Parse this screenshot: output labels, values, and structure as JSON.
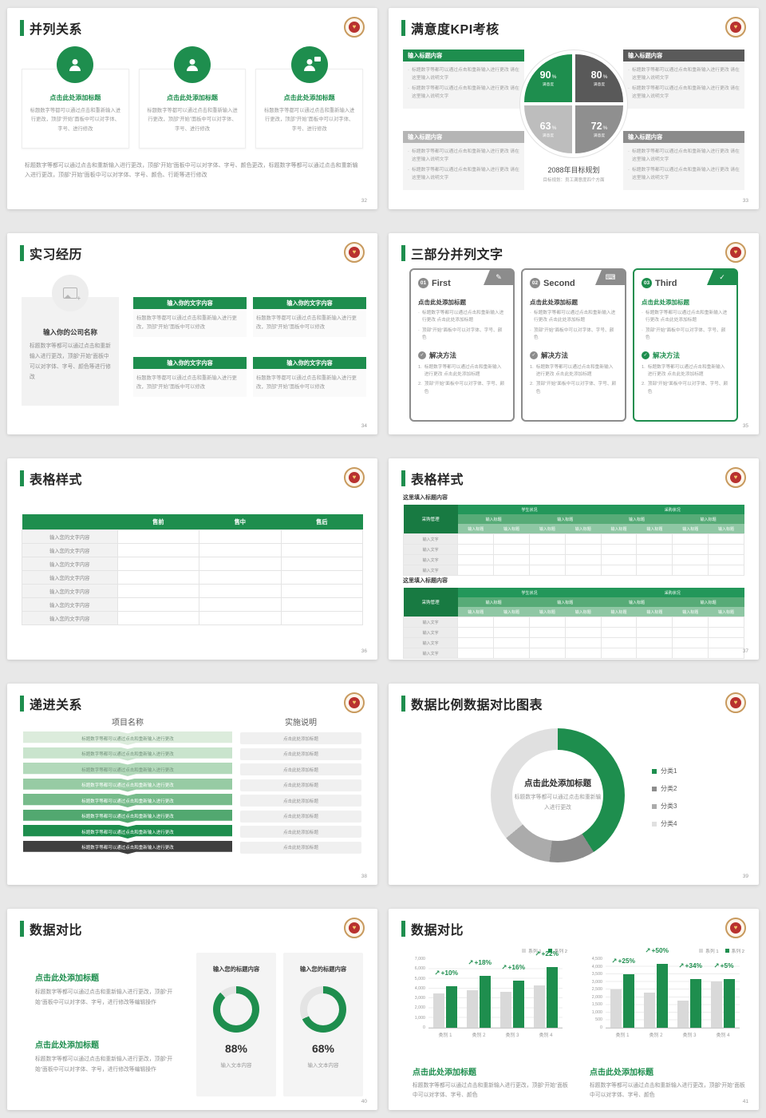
{
  "theme": {
    "green": "#1e8e4e",
    "dark_green": "#187a42",
    "gray_dark": "#595959",
    "gray_mid": "#8f8f8f",
    "gray_light": "#bdbdbd"
  },
  "slides": {
    "s32": {
      "title": "并列关系",
      "page": "32",
      "card_title": "点击此处添加标题",
      "card_body": "标题数字等都可以通过点击和重新输入进行更改，顶部“开始”面板中可以对字体、字号、进行修改",
      "footer": "标题数字等都可以通过点击和重新输入进行更改，顶部“开始”面板中可以对字体、字号、颜色更改，标题数字等都可以通过点击和重新输入进行更改，顶部“开始”面板中可以对字体、字号、颜色、行距等进行修改"
    },
    "s33": {
      "title": "满意度KPI考核",
      "page": "33",
      "box_title": "输入标题内容",
      "bullet": "标题数字等都可以通过点击和重新输入进行更改 请在这里输入说明文字",
      "center_title": "2088年目标规划",
      "center_caption": "目标规划：员工满意度四个方面",
      "quadrants": [
        {
          "value": "90",
          "label": "满意度"
        },
        {
          "value": "80",
          "label": "满意度"
        },
        {
          "value": "63",
          "label": "满意度"
        },
        {
          "value": "72",
          "label": "满意度"
        }
      ]
    },
    "s34": {
      "title": "实习经历",
      "page": "34",
      "company_title": "输入你的公司名称",
      "company_body": "标题数字等都可以通过点击和重新输入进行更改，顶部“开始”面板中可以对字体、字号、颜色等进行修改",
      "box_title": "输入你的文字内容",
      "box_body": "标题数字等都可以通过点击和重新输入进行更改，顶部“开始”面板中可以修改"
    },
    "s35": {
      "title": "三部分并列文字",
      "page": "35",
      "cards": [
        {
          "num": "01",
          "name": "First"
        },
        {
          "num": "02",
          "name": "Second"
        },
        {
          "num": "03",
          "name": "Third"
        }
      ],
      "card_title": "点击此处添加标题",
      "bullets": [
        "标题数字等都可以通过点击和重新输入进行更改 点击此处添加标题",
        "顶部“开始”面板中可以对字体、字号、颜色"
      ],
      "solution_label": "解决方法",
      "solution_items": [
        "标题数字等都可以通过点击和重新输入进行更改 点击此处添加标题",
        "顶部“开始”面板中可以对字体、字号、颜色"
      ]
    },
    "s36": {
      "title": "表格样式",
      "page": "36",
      "headers": [
        "",
        "售前",
        "售中",
        "售后"
      ],
      "row_label": "输入您的文字内容",
      "row_count": 7
    },
    "s37": {
      "title": "表格样式",
      "page": "37",
      "caption": "这里填入标题内容",
      "stub": "采购管理",
      "groups": [
        "学生状况",
        "采购状况"
      ],
      "sub": "输入标题",
      "cell": "输入文字",
      "body_rows": 4
    },
    "s38": {
      "title": "递进关系",
      "page": "38",
      "col1": "项目名称",
      "col2": "实施说明",
      "bar_text": "标题数字等都可以通过点击和重新输入进行更改",
      "note_text": "点击此处添加标题",
      "colors": [
        "#dcecdc",
        "#c9e4cd",
        "#b2d9ba",
        "#97cba4",
        "#77bb8b",
        "#52a870",
        "#1e8e4e",
        "#3f3f3f"
      ],
      "rows": 8
    },
    "s39": {
      "title": "数据比例数据对比图表",
      "page": "39",
      "center_title": "点击此处添加标题",
      "center_caption": "标题数字等都可以通过点击和重新输入进行更改"
    },
    "s40": {
      "title": "数据对比",
      "page": "40",
      "block_title": "点击此处添加标题",
      "block_body": "标题数字等都可以通过点击和重新输入进行更改，顶部“开始”面板中可以对字体、字号，进行修改等编辑操作",
      "gauges": [
        {
          "header": "输入您的标题内容",
          "pct": "88%",
          "caption": "输入文本内容"
        },
        {
          "header": "输入您的标题内容",
          "pct": "68%",
          "caption": "输入文本内容"
        }
      ]
    },
    "s41": {
      "title": "数据对比",
      "page": "41",
      "block_title": "点击此处添加标题",
      "block_body": "标题数字等都可以通过点击和重新输入进行更改，顶部“开始”面板中可以对字体、字号、颜色"
    }
  },
  "chart_data": [
    {
      "type": "pie",
      "variant": "quadrant",
      "slide": "33",
      "slices": [
        {
          "label": "满意度",
          "value": 90,
          "color": "#1e8e4e"
        },
        {
          "label": "满意度",
          "value": 80,
          "color": "#595959"
        },
        {
          "label": "满意度",
          "value": 63,
          "color": "#bdbdbd"
        },
        {
          "label": "满意度",
          "value": 72,
          "color": "#8f8f8f"
        }
      ],
      "title": "2088年目标规划",
      "caption": "目标规划：员工满意度四个方面"
    },
    {
      "type": "pie",
      "variant": "donut",
      "slide": "39",
      "labels": [
        "分类1",
        "分类2",
        "分类3",
        "分类4"
      ],
      "values": [
        41,
        11,
        12,
        36
      ],
      "colors": [
        "#1e8e4e",
        "#8c8c8c",
        "#ababab",
        "#e0e0e0"
      ],
      "legend_position": "right",
      "title": "点击此处添加标题"
    },
    {
      "type": "pie",
      "variant": "gauge",
      "slide": "40",
      "values": [
        88,
        68
      ],
      "color": "#1e8e4e",
      "track": "#e4e4e4"
    },
    {
      "type": "bar",
      "slide": "41-left",
      "categories": [
        "类别 1",
        "类别 2",
        "类别 3",
        "类别 4"
      ],
      "series": [
        {
          "name": "系列 1",
          "color": "#d9d9d9",
          "values": [
            3500,
            3800,
            3650,
            4300
          ]
        },
        {
          "name": "系列 2",
          "color": "#1e8e4e",
          "values": [
            4200,
            5300,
            4800,
            6200
          ]
        }
      ],
      "labels": [
        "+10%",
        "+18%",
        "+16%",
        "+22%"
      ],
      "ylim": [
        0,
        7000
      ],
      "ystep": 1000,
      "grid": true,
      "legend_position": "top-right"
    },
    {
      "type": "bar",
      "slide": "41-right",
      "categories": [
        "类别 1",
        "类别 2",
        "类别 3",
        "类别 4"
      ],
      "series": [
        {
          "name": "系列 1",
          "color": "#d9d9d9",
          "values": [
            2500,
            2300,
            1800,
            3050
          ]
        },
        {
          "name": "系列 2",
          "color": "#1e8e4e",
          "values": [
            3500,
            4200,
            3200,
            3200
          ]
        }
      ],
      "labels": [
        "+25%",
        "+50%",
        "+34%",
        "+5%"
      ],
      "ylim": [
        0,
        4500
      ],
      "ystep": 500,
      "grid": true,
      "legend_position": "top-right"
    }
  ]
}
